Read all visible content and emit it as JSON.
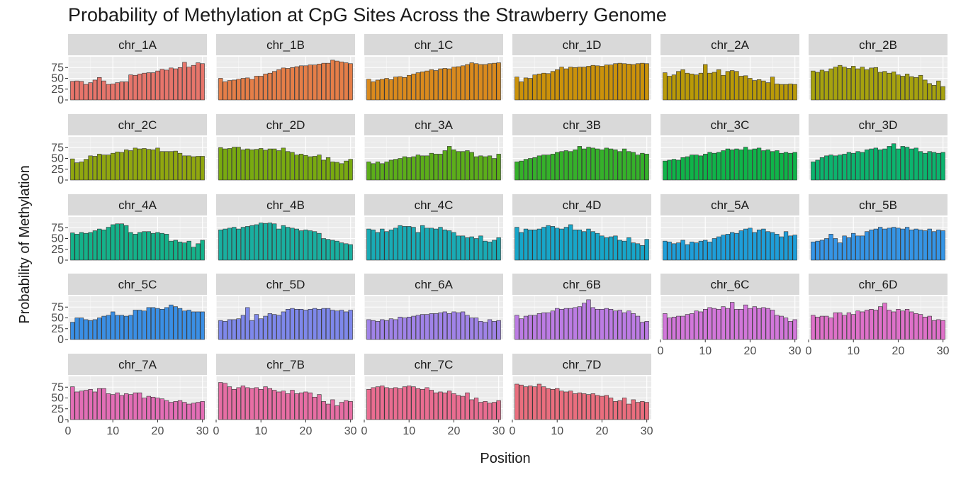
{
  "chart_data": {
    "type": "bar",
    "title": "Probability of Methylation at CpG Sites Across the Strawberry Genome",
    "xlabel": "Position",
    "ylabel": "Probability of Methylation",
    "xlim": [
      0,
      31
    ],
    "ylim": [
      0,
      100
    ],
    "x_ticks": [
      0,
      10,
      20,
      30
    ],
    "y_ticks": [
      0,
      25,
      50,
      75
    ],
    "x": [
      1,
      2,
      3,
      4,
      5,
      6,
      7,
      8,
      9,
      10,
      11,
      12,
      13,
      14,
      15,
      16,
      17,
      18,
      19,
      20,
      21,
      22,
      23,
      24,
      25,
      26,
      27,
      28,
      29,
      30
    ],
    "grid": true,
    "legend": "none",
    "facets": [
      {
        "name": "chr_1A",
        "color": "#E7756B",
        "values": [
          43,
          44,
          43,
          36,
          40,
          46,
          52,
          44,
          36,
          37,
          40,
          42,
          42,
          58,
          57,
          60,
          62,
          63,
          63,
          67,
          71,
          69,
          74,
          72,
          75,
          87,
          76,
          80,
          86,
          84
        ]
      },
      {
        "name": "chr_1B",
        "color": "#E57E48",
        "values": [
          50,
          42,
          45,
          46,
          48,
          50,
          51,
          48,
          55,
          55,
          60,
          62,
          66,
          70,
          74,
          73,
          75,
          77,
          79,
          79,
          81,
          81,
          83,
          85,
          85,
          92,
          90,
          88,
          86,
          84
        ]
      },
      {
        "name": "chr_1C",
        "color": "#DA8A1D",
        "values": [
          48,
          42,
          46,
          48,
          50,
          47,
          53,
          54,
          52,
          57,
          60,
          63,
          65,
          67,
          70,
          68,
          72,
          73,
          72,
          76,
          77,
          79,
          82,
          86,
          84,
          82,
          82,
          84,
          85,
          86
        ]
      },
      {
        "name": "chr_1D",
        "color": "#CB920A",
        "values": [
          53,
          42,
          51,
          50,
          58,
          60,
          62,
          61,
          66,
          70,
          76,
          72,
          76,
          75,
          76,
          76,
          78,
          80,
          79,
          78,
          81,
          81,
          84,
          85,
          84,
          83,
          82,
          84,
          85,
          84
        ]
      },
      {
        "name": "chr_2A",
        "color": "#B99A07",
        "values": [
          63,
          55,
          58,
          66,
          70,
          62,
          60,
          58,
          62,
          82,
          62,
          64,
          70,
          57,
          66,
          68,
          66,
          55,
          56,
          50,
          45,
          47,
          44,
          40,
          53,
          37,
          36,
          36,
          37,
          36
        ]
      },
      {
        "name": "chr_2B",
        "color": "#A6A20E",
        "values": [
          67,
          64,
          69,
          66,
          72,
          76,
          80,
          76,
          73,
          78,
          72,
          76,
          70,
          74,
          75,
          64,
          66,
          62,
          65,
          58,
          55,
          60,
          54,
          52,
          57,
          46,
          38,
          34,
          44,
          31
        ]
      },
      {
        "name": "chr_2C",
        "color": "#90A70F",
        "values": [
          49,
          40,
          42,
          48,
          56,
          55,
          60,
          58,
          58,
          62,
          65,
          64,
          70,
          68,
          74,
          72,
          73,
          71,
          70,
          74,
          66,
          66,
          66,
          67,
          62,
          56,
          56,
          54,
          55,
          55
        ]
      },
      {
        "name": "chr_2D",
        "color": "#79AA10",
        "values": [
          75,
          72,
          73,
          76,
          76,
          70,
          72,
          70,
          71,
          73,
          69,
          72,
          72,
          68,
          74,
          66,
          64,
          58,
          60,
          57,
          54,
          55,
          58,
          46,
          52,
          42,
          41,
          38,
          44,
          48
        ]
      },
      {
        "name": "chr_3A",
        "color": "#5CAE1A",
        "values": [
          42,
          38,
          42,
          38,
          42,
          46,
          48,
          50,
          54,
          52,
          54,
          58,
          56,
          56,
          62,
          60,
          60,
          68,
          78,
          70,
          66,
          66,
          68,
          64,
          54,
          56,
          54,
          56,
          50,
          60
        ]
      },
      {
        "name": "chr_3B",
        "color": "#35B12A",
        "values": [
          42,
          44,
          48,
          50,
          52,
          56,
          58,
          58,
          60,
          64,
          66,
          68,
          66,
          70,
          78,
          72,
          76,
          74,
          72,
          70,
          74,
          72,
          70,
          66,
          72,
          66,
          64,
          58,
          62,
          60
        ]
      },
      {
        "name": "chr_3C",
        "color": "#0FB449",
        "values": [
          44,
          46,
          48,
          46,
          52,
          54,
          58,
          58,
          56,
          60,
          64,
          62,
          64,
          68,
          72,
          70,
          72,
          70,
          76,
          70,
          72,
          74,
          68,
          70,
          66,
          68,
          62,
          64,
          62,
          64
        ]
      },
      {
        "name": "chr_3D",
        "color": "#0CB46E",
        "values": [
          42,
          46,
          52,
          56,
          58,
          56,
          58,
          60,
          64,
          62,
          66,
          64,
          70,
          72,
          74,
          70,
          72,
          78,
          84,
          72,
          78,
          76,
          72,
          74,
          66,
          62,
          66,
          64,
          62,
          64
        ]
      },
      {
        "name": "chr_4A",
        "color": "#14B28A",
        "values": [
          63,
          60,
          64,
          62,
          64,
          68,
          72,
          70,
          76,
          82,
          84,
          84,
          80,
          64,
          60,
          64,
          66,
          66,
          62,
          64,
          62,
          60,
          44,
          46,
          42,
          40,
          44,
          30,
          38,
          46
        ]
      },
      {
        "name": "chr_4B",
        "color": "#19AFA0",
        "values": [
          70,
          72,
          74,
          76,
          72,
          76,
          78,
          80,
          82,
          86,
          85,
          86,
          84,
          72,
          80,
          76,
          74,
          72,
          68,
          70,
          68,
          66,
          62,
          50,
          48,
          46,
          44,
          40,
          38,
          36
        ]
      },
      {
        "name": "chr_4C",
        "color": "#19ABB5",
        "values": [
          72,
          70,
          64,
          72,
          66,
          70,
          74,
          80,
          78,
          78,
          76,
          64,
          80,
          74,
          74,
          72,
          76,
          70,
          68,
          64,
          56,
          56,
          52,
          54,
          50,
          56,
          44,
          42,
          46,
          52
        ]
      },
      {
        "name": "chr_4D",
        "color": "#17A6C9",
        "values": [
          76,
          64,
          72,
          70,
          70,
          72,
          76,
          80,
          78,
          74,
          72,
          76,
          82,
          70,
          70,
          66,
          72,
          66,
          62,
          56,
          52,
          54,
          56,
          46,
          44,
          52,
          40,
          38,
          34,
          48
        ]
      },
      {
        "name": "chr_5A",
        "color": "#1E9ED9",
        "values": [
          44,
          42,
          38,
          40,
          46,
          36,
          42,
          40,
          44,
          46,
          42,
          50,
          54,
          58,
          60,
          64,
          62,
          68,
          72,
          74,
          64,
          70,
          72,
          66,
          64,
          60,
          54,
          66,
          56,
          58
        ]
      },
      {
        "name": "chr_5B",
        "color": "#3595E6",
        "values": [
          42,
          44,
          46,
          50,
          60,
          50,
          40,
          56,
          52,
          62,
          56,
          56,
          66,
          70,
          72,
          76,
          72,
          74,
          76,
          74,
          72,
          76,
          70,
          72,
          70,
          68,
          72,
          66,
          70,
          68
        ]
      },
      {
        "name": "chr_5C",
        "color": "#3A8FE5",
        "values": [
          40,
          50,
          50,
          46,
          44,
          46,
          50,
          54,
          56,
          64,
          56,
          56,
          54,
          56,
          68,
          68,
          66,
          74,
          74,
          72,
          70,
          74,
          80,
          76,
          72,
          66,
          68,
          64,
          64,
          64
        ]
      },
      {
        "name": "chr_5D",
        "color": "#7E88EB",
        "values": [
          44,
          42,
          46,
          46,
          48,
          56,
          74,
          44,
          58,
          48,
          54,
          60,
          58,
          56,
          64,
          70,
          72,
          70,
          70,
          68,
          70,
          72,
          70,
          72,
          72,
          68,
          66,
          68,
          64,
          68
        ]
      },
      {
        "name": "chr_6A",
        "color": "#A083E8",
        "values": [
          46,
          44,
          42,
          46,
          44,
          48,
          46,
          52,
          50,
          52,
          54,
          56,
          58,
          58,
          60,
          60,
          62,
          64,
          60,
          64,
          62,
          64,
          56,
          50,
          50,
          42,
          40,
          46,
          42,
          44
        ]
      },
      {
        "name": "chr_6B",
        "color": "#BC7CE4",
        "values": [
          56,
          48,
          54,
          56,
          56,
          60,
          62,
          62,
          66,
          72,
          70,
          72,
          72,
          74,
          76,
          84,
          92,
          74,
          70,
          70,
          72,
          70,
          66,
          68,
          62,
          66,
          60,
          54,
          40,
          42
        ]
      },
      {
        "name": "chr_6C",
        "color": "#D277DA",
        "values": [
          60,
          50,
          52,
          54,
          54,
          58,
          60,
          66,
          64,
          70,
          74,
          72,
          70,
          76,
          72,
          86,
          70,
          70,
          80,
          72,
          76,
          72,
          74,
          72,
          68,
          56,
          54,
          50,
          42,
          46
        ]
      },
      {
        "name": "chr_6D",
        "color": "#DE71C9",
        "values": [
          56,
          52,
          54,
          54,
          50,
          62,
          62,
          56,
          62,
          58,
          66,
          64,
          68,
          70,
          68,
          76,
          84,
          68,
          64,
          70,
          66,
          70,
          64,
          60,
          58,
          52,
          54,
          44,
          46,
          44
        ]
      },
      {
        "name": "chr_7A",
        "color": "#E36EB6",
        "values": [
          76,
          64,
          66,
          68,
          70,
          64,
          72,
          72,
          60,
          58,
          62,
          56,
          60,
          58,
          62,
          62,
          50,
          54,
          52,
          50,
          48,
          44,
          40,
          42,
          44,
          40,
          36,
          38,
          40,
          42
        ]
      },
      {
        "name": "chr_7B",
        "color": "#E76EA4",
        "values": [
          86,
          84,
          76,
          70,
          74,
          78,
          74,
          72,
          74,
          70,
          76,
          72,
          68,
          64,
          66,
          60,
          68,
          60,
          62,
          64,
          62,
          52,
          58,
          42,
          36,
          46,
          32,
          40,
          44,
          42
        ]
      },
      {
        "name": "chr_7C",
        "color": "#EA6D91",
        "values": [
          70,
          74,
          76,
          78,
          74,
          72,
          74,
          72,
          76,
          78,
          76,
          72,
          70,
          74,
          68,
          62,
          64,
          62,
          66,
          60,
          56,
          54,
          62,
          46,
          50,
          40,
          42,
          38,
          40,
          44
        ]
      },
      {
        "name": "chr_7D",
        "color": "#EA6E7E",
        "values": [
          82,
          80,
          76,
          78,
          76,
          82,
          76,
          72,
          70,
          72,
          66,
          64,
          66,
          60,
          62,
          60,
          58,
          60,
          56,
          54,
          56,
          50,
          42,
          44,
          50,
          36,
          46,
          40,
          42,
          40
        ]
      }
    ]
  }
}
